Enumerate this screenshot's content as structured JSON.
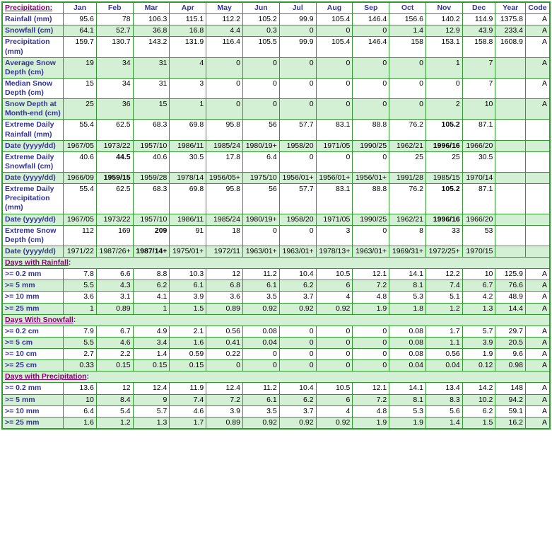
{
  "colors": {
    "border": "#339933",
    "header_text": "#333399",
    "link_text": "#8b0070",
    "row_green": "#d4f0d4",
    "row_white": "#ffffff"
  },
  "headers": [
    "Precipitation:",
    "Jan",
    "Feb",
    "Mar",
    "Apr",
    "May",
    "Jun",
    "Jul",
    "Aug",
    "Sep",
    "Oct",
    "Nov",
    "Dec",
    "Year",
    "Code"
  ],
  "rows": [
    {
      "label": "Rainfall (mm)",
      "bg": "w",
      "cells": [
        "95.6",
        "78",
        "106.3",
        "115.1",
        "112.2",
        "105.2",
        "99.9",
        "105.4",
        "146.4",
        "156.6",
        "140.2",
        "114.9",
        "1375.8",
        "A"
      ]
    },
    {
      "label": "Snowfall (cm)",
      "bg": "g",
      "cells": [
        "64.1",
        "52.7",
        "36.8",
        "16.8",
        "4.4",
        "0.3",
        "0",
        "0",
        "0",
        "1.4",
        "12.9",
        "43.9",
        "233.4",
        "A"
      ]
    },
    {
      "label": "Precipitation (mm)",
      "bg": "w",
      "cells": [
        "159.7",
        "130.7",
        "143.2",
        "131.9",
        "116.4",
        "105.5",
        "99.9",
        "105.4",
        "146.4",
        "158",
        "153.1",
        "158.8",
        "1608.9",
        "A"
      ]
    },
    {
      "label": "Average Snow Depth (cm)",
      "bg": "g",
      "cells": [
        "19",
        "34",
        "31",
        "4",
        "0",
        "0",
        "0",
        "0",
        "0",
        "0",
        "1",
        "7",
        "",
        "A"
      ]
    },
    {
      "label": "Median Snow Depth (cm)",
      "bg": "w",
      "cells": [
        "15",
        "34",
        "31",
        "3",
        "0",
        "0",
        "0",
        "0",
        "0",
        "0",
        "0",
        "7",
        "",
        "A"
      ]
    },
    {
      "label": "Snow Depth at Month-end (cm)",
      "bg": "g",
      "cells": [
        "25",
        "36",
        "15",
        "1",
        "0",
        "0",
        "0",
        "0",
        "0",
        "0",
        "2",
        "10",
        "",
        "A"
      ]
    },
    {
      "label": "Extreme Daily Rainfall (mm)",
      "bg": "w",
      "cells": [
        "55.4",
        "62.5",
        "68.3",
        "69.8",
        "95.8",
        "56",
        "57.7",
        "83.1",
        "88.8",
        "76.2",
        "105.2",
        "87.1",
        "",
        ""
      ],
      "bold": [
        10
      ]
    },
    {
      "label": "Date (yyyy/dd)",
      "bg": "g",
      "cells": [
        "1967/05",
        "1973/22",
        "1957/10",
        "1986/11",
        "1985/24",
        "1980/19+",
        "1958/20",
        "1971/05",
        "1990/25",
        "1962/21",
        "1996/16",
        "1966/20",
        "",
        ""
      ],
      "bold": [
        10
      ]
    },
    {
      "label": "Extreme Daily Snowfall (cm)",
      "bg": "w",
      "cells": [
        "40.6",
        "44.5",
        "40.6",
        "30.5",
        "17.8",
        "6.4",
        "0",
        "0",
        "0",
        "25",
        "25",
        "30.5",
        "",
        ""
      ],
      "bold": [
        1
      ]
    },
    {
      "label": "Date (yyyy/dd)",
      "bg": "g",
      "cells": [
        "1966/09",
        "1959/15",
        "1959/28",
        "1978/14",
        "1956/05+",
        "1975/10",
        "1956/01+",
        "1956/01+",
        "1956/01+",
        "1991/28",
        "1985/15",
        "1970/14",
        "",
        ""
      ],
      "bold": [
        1
      ]
    },
    {
      "label": "Extreme Daily Precipitation (mm)",
      "bg": "w",
      "cells": [
        "55.4",
        "62.5",
        "68.3",
        "69.8",
        "95.8",
        "56",
        "57.7",
        "83.1",
        "88.8",
        "76.2",
        "105.2",
        "87.1",
        "",
        ""
      ],
      "bold": [
        10
      ]
    },
    {
      "label": "Date (yyyy/dd)",
      "bg": "g",
      "cells": [
        "1967/05",
        "1973/22",
        "1957/10",
        "1986/11",
        "1985/24",
        "1980/19+",
        "1958/20",
        "1971/05",
        "1990/25",
        "1962/21",
        "1996/16",
        "1966/20",
        "",
        ""
      ],
      "bold": [
        10
      ]
    },
    {
      "label": "Extreme Snow Depth (cm)",
      "bg": "w",
      "cells": [
        "112",
        "169",
        "209",
        "91",
        "18",
        "0",
        "0",
        "3",
        "0",
        "8",
        "33",
        "53",
        "",
        ""
      ],
      "bold": [
        2
      ]
    },
    {
      "label": "Date (yyyy/dd)",
      "bg": "g",
      "cells": [
        "1971/22",
        "1987/26+",
        "1987/14+",
        "1975/01+",
        "1972/11",
        "1963/01+",
        "1963/01+",
        "1978/13+",
        "1963/01+",
        "1969/31+",
        "1972/25+",
        "1970/15",
        "",
        ""
      ],
      "bold": [
        2
      ]
    }
  ],
  "sections": [
    {
      "title": "Days with Rainfall:",
      "rows": [
        {
          "label": ">= 0.2 mm",
          "bg": "w",
          "cells": [
            "7.8",
            "6.6",
            "8.8",
            "10.3",
            "12",
            "11.2",
            "10.4",
            "10.5",
            "12.1",
            "14.1",
            "12.2",
            "10",
            "125.9",
            "A"
          ]
        },
        {
          "label": ">= 5 mm",
          "bg": "g",
          "cells": [
            "5.5",
            "4.3",
            "6.2",
            "6.1",
            "6.8",
            "6.1",
            "6.2",
            "6",
            "7.2",
            "8.1",
            "7.4",
            "6.7",
            "76.6",
            "A"
          ]
        },
        {
          "label": ">= 10 mm",
          "bg": "w",
          "cells": [
            "3.6",
            "3.1",
            "4.1",
            "3.9",
            "3.6",
            "3.5",
            "3.7",
            "4",
            "4.8",
            "5.3",
            "5.1",
            "4.2",
            "48.9",
            "A"
          ]
        },
        {
          "label": ">= 25 mm",
          "bg": "g",
          "cells": [
            "1",
            "0.89",
            "1",
            "1.5",
            "0.89",
            "0.92",
            "0.92",
            "0.92",
            "1.9",
            "1.8",
            "1.2",
            "1.3",
            "14.4",
            "A"
          ]
        }
      ]
    },
    {
      "title": "Days With Snowfall:",
      "rows": [
        {
          "label": ">= 0.2 cm",
          "bg": "w",
          "cells": [
            "7.9",
            "6.7",
            "4.9",
            "2.1",
            "0.56",
            "0.08",
            "0",
            "0",
            "0",
            "0.08",
            "1.7",
            "5.7",
            "29.7",
            "A"
          ]
        },
        {
          "label": ">= 5 cm",
          "bg": "g",
          "cells": [
            "5.5",
            "4.6",
            "3.4",
            "1.6",
            "0.41",
            "0.04",
            "0",
            "0",
            "0",
            "0.08",
            "1.1",
            "3.9",
            "20.5",
            "A"
          ]
        },
        {
          "label": ">= 10 cm",
          "bg": "w",
          "cells": [
            "2.7",
            "2.2",
            "1.4",
            "0.59",
            "0.22",
            "0",
            "0",
            "0",
            "0",
            "0.08",
            "0.56",
            "1.9",
            "9.6",
            "A"
          ]
        },
        {
          "label": ">= 25 cm",
          "bg": "g",
          "cells": [
            "0.33",
            "0.15",
            "0.15",
            "0.15",
            "0",
            "0",
            "0",
            "0",
            "0",
            "0.04",
            "0.04",
            "0.12",
            "0.98",
            "A"
          ]
        }
      ]
    },
    {
      "title": "Days with Precipitation:",
      "rows": [
        {
          "label": ">= 0.2 mm",
          "bg": "w",
          "cells": [
            "13.6",
            "12",
            "12.4",
            "11.9",
            "12.4",
            "11.2",
            "10.4",
            "10.5",
            "12.1",
            "14.1",
            "13.4",
            "14.2",
            "148",
            "A"
          ]
        },
        {
          "label": ">= 5 mm",
          "bg": "g",
          "cells": [
            "10",
            "8.4",
            "9",
            "7.4",
            "7.2",
            "6.1",
            "6.2",
            "6",
            "7.2",
            "8.1",
            "8.3",
            "10.2",
            "94.2",
            "A"
          ]
        },
        {
          "label": ">= 10 mm",
          "bg": "w",
          "cells": [
            "6.4",
            "5.4",
            "5.7",
            "4.6",
            "3.9",
            "3.5",
            "3.7",
            "4",
            "4.8",
            "5.3",
            "5.6",
            "6.2",
            "59.1",
            "A"
          ]
        },
        {
          "label": ">= 25 mm",
          "bg": "g",
          "cells": [
            "1.6",
            "1.2",
            "1.3",
            "1.7",
            "0.89",
            "0.92",
            "0.92",
            "0.92",
            "1.9",
            "1.9",
            "1.4",
            "1.5",
            "16.2",
            "A"
          ]
        }
      ]
    }
  ]
}
